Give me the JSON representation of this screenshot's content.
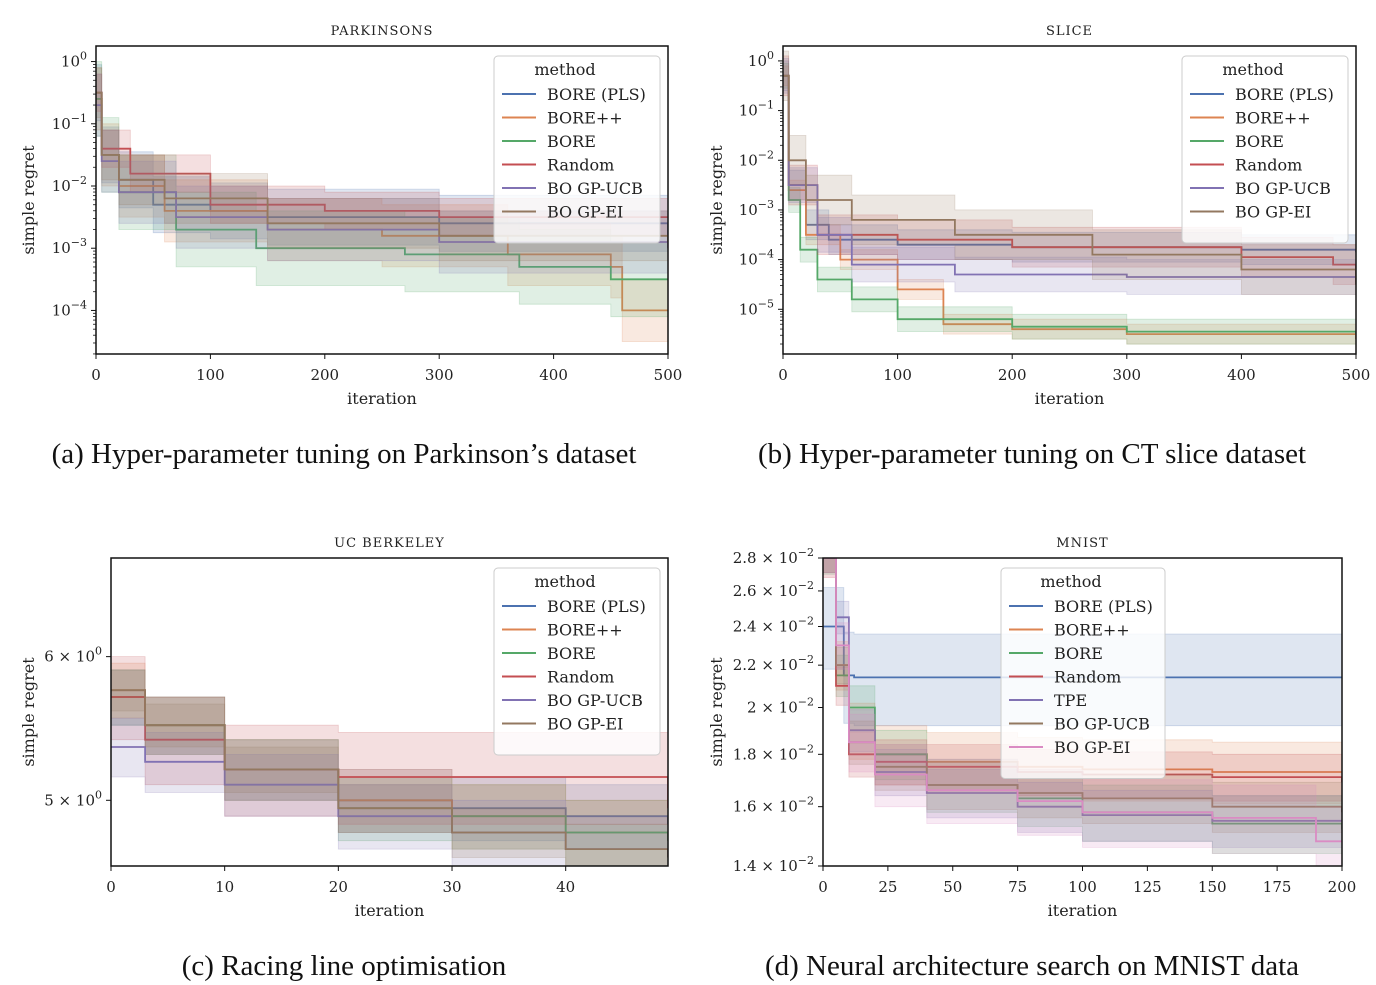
{
  "captions": [
    "(a) Hyper-parameter tuning on Parkinson’s dataset",
    "(b) Hyper-parameter tuning on CT slice dataset",
    "(c) Racing line optimisation",
    "(d) Neural architecture search on MNIST data"
  ],
  "chart_data": [
    {
      "type": "line",
      "title": "PARKINSONS",
      "xlabel": "iteration",
      "ylabel": "simple regret",
      "yscale": "log",
      "xlim": [
        0,
        500
      ],
      "ylim_log10": [
        -4.7,
        0.25
      ],
      "xticks": [
        0,
        100,
        200,
        300,
        400,
        500
      ],
      "xtick_labels": [
        "0",
        "100",
        "200",
        "300",
        "400",
        "500"
      ],
      "yticks_log10": [
        0,
        -1,
        -2,
        -3,
        -4
      ],
      "ytick_base": "10",
      "ytick_exps": [
        "0",
        "−1",
        "−2",
        "−3",
        "−4"
      ],
      "legend_title": "method",
      "legend_position": "top-right",
      "series": [
        {
          "name": "BORE (PLS)",
          "color": "#4c72b0",
          "x": [
            0,
            5,
            20,
            50,
            100,
            150,
            300,
            500
          ],
          "y_log10": [
            -0.5,
            -1.5,
            -1.9,
            -2.3,
            -2.4,
            -2.5,
            -2.6,
            -2.8
          ],
          "band": 0.45
        },
        {
          "name": "BORE++",
          "color": "#dd8452",
          "x": [
            0,
            5,
            20,
            60,
            150,
            250,
            360,
            450,
            460,
            500
          ],
          "y_log10": [
            -0.6,
            -1.5,
            -2.0,
            -2.4,
            -2.7,
            -2.8,
            -3.1,
            -3.3,
            -4.0,
            -4.0
          ],
          "band": 0.5
        },
        {
          "name": "BORE",
          "color": "#55a868",
          "x": [
            0,
            5,
            20,
            70,
            140,
            270,
            370,
            450,
            500
          ],
          "y_log10": [
            -0.6,
            -1.5,
            -2.1,
            -2.7,
            -3.0,
            -3.1,
            -3.3,
            -3.5,
            -3.5
          ],
          "band": 0.6
        },
        {
          "name": "Random",
          "color": "#c44e52",
          "x": [
            0,
            5,
            30,
            100,
            200,
            300,
            500
          ],
          "y_log10": [
            -0.5,
            -1.4,
            -1.8,
            -2.3,
            -2.4,
            -2.5,
            -2.5
          ],
          "band": 0.3
        },
        {
          "name": "BO GP-UCB",
          "color": "#8172b3",
          "x": [
            0,
            5,
            20,
            70,
            150,
            300,
            500
          ],
          "y_log10": [
            -0.7,
            -1.6,
            -2.1,
            -2.5,
            -2.7,
            -2.9,
            -3.0
          ],
          "band": 0.5
        },
        {
          "name": "BO GP-EI",
          "color": "#937860",
          "x": [
            0,
            5,
            20,
            60,
            150,
            300,
            500
          ],
          "y_log10": [
            -0.5,
            -1.5,
            -1.9,
            -2.2,
            -2.6,
            -2.8,
            -2.9
          ],
          "band": 0.4
        }
      ]
    },
    {
      "type": "line",
      "title": "SLICE",
      "xlabel": "iteration",
      "ylabel": "simple regret",
      "yscale": "log",
      "xlim": [
        0,
        500
      ],
      "ylim_log10": [
        -5.9,
        0.3
      ],
      "xticks": [
        0,
        100,
        200,
        300,
        400,
        500
      ],
      "xtick_labels": [
        "0",
        "100",
        "200",
        "300",
        "400",
        "500"
      ],
      "yticks_log10": [
        0,
        -1,
        -2,
        -3,
        -4,
        -5
      ],
      "ytick_base": "10",
      "ytick_exps": [
        "0",
        "−1",
        "−2",
        "−3",
        "−4",
        "−5"
      ],
      "legend_title": "method",
      "legend_position": "top-right",
      "series": [
        {
          "name": "BORE (PLS)",
          "color": "#4c72b0",
          "x": [
            0,
            5,
            20,
            40,
            100,
            200,
            400,
            500
          ],
          "y_log10": [
            -0.3,
            -2.5,
            -3.3,
            -3.6,
            -3.7,
            -3.75,
            -3.8,
            -3.85
          ],
          "band": 0.3
        },
        {
          "name": "BORE++",
          "color": "#dd8452",
          "x": [
            0,
            5,
            20,
            50,
            100,
            140,
            200,
            300,
            500
          ],
          "y_log10": [
            -0.3,
            -2.6,
            -3.5,
            -4.0,
            -4.6,
            -5.3,
            -5.4,
            -5.5,
            -5.6
          ],
          "band": 0.2
        },
        {
          "name": "BORE",
          "color": "#55a868",
          "x": [
            0,
            5,
            15,
            30,
            60,
            100,
            200,
            300,
            500
          ],
          "y_log10": [
            -0.3,
            -2.8,
            -3.8,
            -4.4,
            -4.8,
            -5.2,
            -5.35,
            -5.45,
            -5.5
          ],
          "band": 0.25
        },
        {
          "name": "Random",
          "color": "#c44e52",
          "x": [
            0,
            5,
            30,
            100,
            200,
            400,
            480,
            500
          ],
          "y_log10": [
            -0.3,
            -2.5,
            -3.5,
            -3.6,
            -3.75,
            -3.95,
            -4.1,
            -4.3
          ],
          "band": 0.4
        },
        {
          "name": "BO GP-UCB",
          "color": "#8172b3",
          "x": [
            0,
            5,
            30,
            60,
            150,
            300,
            500
          ],
          "y_log10": [
            -0.3,
            -2.5,
            -3.5,
            -4.1,
            -4.3,
            -4.35,
            -4.45
          ],
          "band": 0.35
        },
        {
          "name": "BO GP-EI",
          "color": "#937860",
          "x": [
            0,
            5,
            20,
            60,
            150,
            270,
            400,
            500
          ],
          "y_log10": [
            -0.3,
            -2.0,
            -2.8,
            -3.2,
            -3.5,
            -3.9,
            -4.2,
            -4.5
          ],
          "band": 0.5
        }
      ]
    },
    {
      "type": "line",
      "title": "UC BERKELEY",
      "xlabel": "iteration",
      "ylabel": "simple regret",
      "yscale": "log",
      "xlim": [
        0,
        49
      ],
      "ylim": [
        4.6,
        6.8
      ],
      "xticks": [
        0,
        10,
        20,
        30,
        40
      ],
      "xtick_labels": [
        "0",
        "10",
        "20",
        "30",
        "40"
      ],
      "yticks": [
        6,
        5
      ],
      "ytick_mant": [
        "6 × 10",
        "5 × 10"
      ],
      "ytick_exps": [
        "0",
        "0"
      ],
      "legend_title": "method",
      "legend_position": "top-right",
      "series": [
        {
          "name": "BORE (PLS)",
          "color": "#4c72b0",
          "x": [
            0,
            3,
            10,
            20,
            30,
            40,
            49
          ],
          "y": [
            5.7,
            5.5,
            5.2,
            5.0,
            4.95,
            4.9,
            4.85
          ],
          "band": 0.2
        },
        {
          "name": "BORE++",
          "color": "#dd8452",
          "x": [
            0,
            3,
            10,
            20,
            30,
            40,
            49
          ],
          "y": [
            5.75,
            5.5,
            5.2,
            5.0,
            4.9,
            4.8,
            4.75
          ],
          "band": 0.2
        },
        {
          "name": "BORE",
          "color": "#55a868",
          "x": [
            0,
            3,
            10,
            20,
            30,
            40,
            49
          ],
          "y": [
            5.7,
            5.5,
            5.2,
            4.95,
            4.9,
            4.8,
            4.75
          ],
          "band": 0.2
        },
        {
          "name": "Random",
          "color": "#c44e52",
          "x": [
            0,
            3,
            10,
            20,
            30,
            40,
            49
          ],
          "y": [
            5.7,
            5.4,
            5.2,
            5.15,
            5.15,
            5.15,
            4.95
          ],
          "band": 0.3
        },
        {
          "name": "BO GP-UCB",
          "color": "#8172b3",
          "x": [
            0,
            3,
            10,
            20,
            30,
            40,
            49
          ],
          "y": [
            5.35,
            5.25,
            5.1,
            4.9,
            4.8,
            4.7,
            4.65
          ],
          "band": 0.2
        },
        {
          "name": "BO GP-EI",
          "color": "#937860",
          "x": [
            0,
            3,
            10,
            20,
            30,
            40,
            49
          ],
          "y": [
            5.75,
            5.5,
            5.2,
            4.95,
            4.8,
            4.7,
            4.65
          ],
          "band": 0.15
        }
      ]
    },
    {
      "type": "line",
      "title": "MNIST",
      "xlabel": "iteration",
      "ylabel": "simple regret",
      "yscale": "log",
      "xlim": [
        0,
        200
      ],
      "ylim": [
        0.014,
        0.028
      ],
      "xticks": [
        0,
        25,
        50,
        75,
        100,
        125,
        150,
        175,
        200
      ],
      "xtick_labels": [
        "0",
        "25",
        "50",
        "75",
        "100",
        "125",
        "150",
        "175",
        "200"
      ],
      "yticks": [
        0.028,
        0.026,
        0.024,
        0.022,
        0.02,
        0.018,
        0.016,
        0.014
      ],
      "ytick_mant": [
        "2.8 × 10",
        "2.6 × 10",
        "2.4 × 10",
        "2.2 × 10",
        "2 × 10",
        "1.8 × 10",
        "1.6 × 10",
        "1.4 × 10"
      ],
      "ytick_exps": [
        "−2",
        "−2",
        "−2",
        "−2",
        "−2",
        "−2",
        "−2",
        "−2"
      ],
      "legend_title": "method",
      "legend_position": "top-center",
      "series": [
        {
          "name": "BORE (PLS)",
          "color": "#4c72b0",
          "x": [
            0,
            8,
            12,
            20,
            50,
            100,
            150,
            200
          ],
          "y": [
            0.024,
            0.0215,
            0.0214,
            0.0214,
            0.0214,
            0.0214,
            0.0214,
            0.0214
          ],
          "band": 0.0022
        },
        {
          "name": "BORE++",
          "color": "#dd8452",
          "x": [
            0,
            5,
            10,
            20,
            40,
            75,
            100,
            150,
            200
          ],
          "y": [
            0.028,
            0.022,
            0.019,
            0.018,
            0.0177,
            0.0175,
            0.0174,
            0.0173,
            0.0173
          ],
          "band": 0.0012
        },
        {
          "name": "BORE",
          "color": "#55a868",
          "x": [
            0,
            5,
            10,
            20,
            40,
            75,
            100,
            150,
            200
          ],
          "y": [
            0.028,
            0.0215,
            0.02,
            0.018,
            0.0168,
            0.0163,
            0.0158,
            0.0154,
            0.0152
          ],
          "band": 0.001
        },
        {
          "name": "Random",
          "color": "#c44e52",
          "x": [
            0,
            5,
            10,
            20,
            40,
            75,
            100,
            150,
            200
          ],
          "y": [
            0.028,
            0.021,
            0.018,
            0.0177,
            0.0175,
            0.0173,
            0.0172,
            0.0171,
            0.0169
          ],
          "band": 0.0009
        },
        {
          "name": "TPE",
          "color": "#8172b3",
          "x": [
            0,
            5,
            10,
            20,
            40,
            75,
            100,
            150,
            200
          ],
          "y": [
            0.028,
            0.0245,
            0.019,
            0.0173,
            0.0165,
            0.016,
            0.0157,
            0.0155,
            0.0155
          ],
          "band": 0.0009
        },
        {
          "name": "BO GP-UCB",
          "color": "#937860",
          "x": [
            0,
            5,
            10,
            20,
            40,
            75,
            100,
            150,
            200
          ],
          "y": [
            0.028,
            0.022,
            0.0185,
            0.0175,
            0.0168,
            0.0165,
            0.0163,
            0.016,
            0.0158
          ],
          "band": 0.0009
        },
        {
          "name": "BO GP-EI",
          "color": "#da8bc3",
          "x": [
            0,
            5,
            10,
            20,
            40,
            75,
            100,
            150,
            190,
            200
          ],
          "y": [
            0.028,
            0.023,
            0.0185,
            0.0172,
            0.0166,
            0.0162,
            0.0158,
            0.0156,
            0.0148,
            0.0148
          ],
          "band": 0.0012
        }
      ]
    }
  ]
}
